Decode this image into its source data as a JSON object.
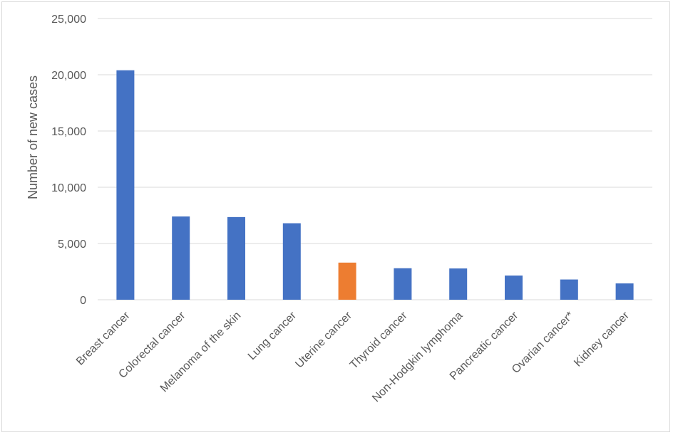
{
  "chart_data": {
    "type": "bar",
    "title": "",
    "xlabel": "",
    "ylabel": "Number of new cases",
    "ylim": [
      0,
      25000
    ],
    "yticks": [
      0,
      5000,
      10000,
      15000,
      20000,
      25000
    ],
    "ytick_labels": [
      "0",
      "5,000",
      "10,000",
      "15,000",
      "20,000",
      "25,000"
    ],
    "grid": true,
    "legend": "none",
    "categories": [
      "Breast cancer",
      "Colorectal cancer",
      "Melanoma of the skin",
      "Lung cancer",
      "Uterine cancer",
      "Thyroid cancer",
      "Non-Hodgkin lymphoma",
      "Pancreatic cancer",
      "Ovarian cancer*",
      "Kidney cancer"
    ],
    "values": [
      20400,
      7400,
      7350,
      6800,
      3300,
      2800,
      2780,
      2150,
      1800,
      1450
    ],
    "colors": [
      "#4472C4",
      "#4472C4",
      "#4472C4",
      "#4472C4",
      "#ED7D31",
      "#4472C4",
      "#4472C4",
      "#4472C4",
      "#4472C4",
      "#4472C4"
    ]
  }
}
